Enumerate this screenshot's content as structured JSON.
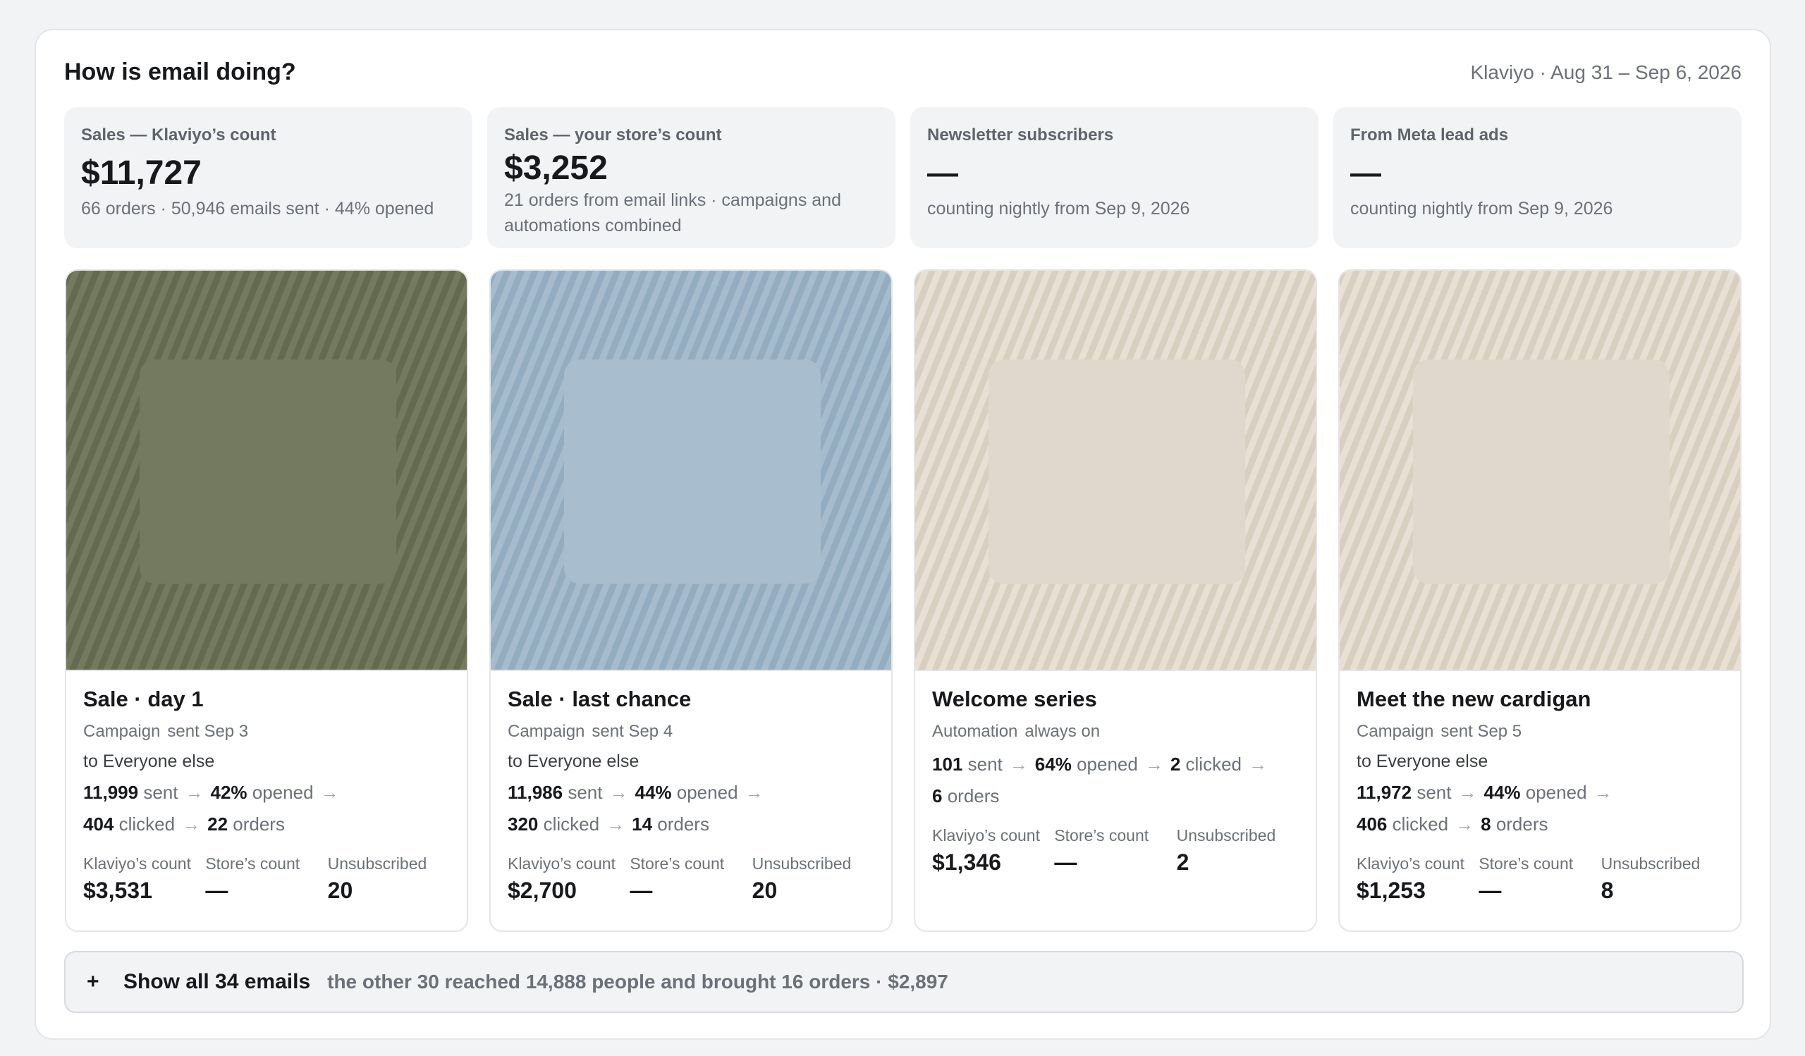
{
  "header": {
    "title": "How is email doing?",
    "range": "Klaviyo · Aug 31 – Sep 6, 2026"
  },
  "stats": [
    {
      "label": "Sales — Klaviyo’s count",
      "value": "$11,727",
      "sub": "66 orders · 50,946 emails sent · 44% opened"
    },
    {
      "label": "Sales — your store’s count",
      "value": "$3,252",
      "sub": "21 orders from email links · campaigns and automations combined"
    },
    {
      "label": "Newsletter subscribers",
      "value": "—",
      "sub": "counting nightly from Sep 9, 2026"
    },
    {
      "label": "From Meta lead ads",
      "value": "—",
      "sub": "counting nightly from Sep 9, 2026"
    }
  ],
  "metric_labels": {
    "klaviyo": "Klaviyo’s count",
    "store": "Store’s count",
    "unsub": "Unsubscribed"
  },
  "funnel_words": {
    "sent": "sent",
    "opened": "opened",
    "clicked": "clicked",
    "orders": "orders",
    "arrow": "→"
  },
  "emails": [
    {
      "name": "Sale · day 1",
      "type": "Campaign",
      "when": "sent Sep 3",
      "audience": "to Everyone else",
      "sent": "11,999",
      "opened": "42%",
      "clicked": "404",
      "orders": "22",
      "klaviyo": "$3,531",
      "store": "—",
      "unsub": "20",
      "thumb_color": "#636a4f"
    },
    {
      "name": "Sale · last chance",
      "type": "Campaign",
      "when": "sent Sep 4",
      "audience": "to Everyone else",
      "sent": "11,986",
      "opened": "44%",
      "clicked": "320",
      "orders": "14",
      "klaviyo": "$2,700",
      "store": "—",
      "unsub": "20",
      "thumb_color": "#93acc0"
    },
    {
      "name": "Welcome series",
      "type": "Automation",
      "when": "always on",
      "audience": "",
      "sent": "101",
      "opened": "64%",
      "clicked": "2",
      "orders": "6",
      "klaviyo": "$1,346",
      "store": "—",
      "unsub": "2",
      "thumb_color": "#d9cfc1"
    },
    {
      "name": "Meet the new cardigan",
      "type": "Campaign",
      "when": "sent Sep 5",
      "audience": "to Everyone else",
      "sent": "11,972",
      "opened": "44%",
      "clicked": "406",
      "orders": "8",
      "klaviyo": "$1,253",
      "store": "—",
      "unsub": "8",
      "thumb_color": "#d9cfc1"
    }
  ],
  "show_all": {
    "icon": "plus-icon",
    "plus": "+",
    "label": "Show all 34 emails",
    "sub": "the other 30 reached 14,888 people and brought 16 orders · $2,897"
  }
}
